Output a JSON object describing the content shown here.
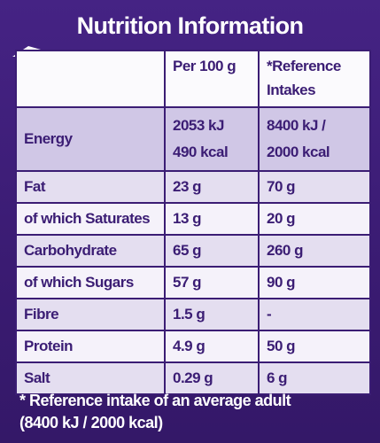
{
  "header": {
    "title": "Nutrition Information"
  },
  "table": {
    "columns": [
      "Per 100 g",
      "*Reference Intakes"
    ],
    "energy": {
      "name": "Energy",
      "per100": [
        "2053 kJ",
        "490 kcal"
      ],
      "reference": [
        "8400 kJ /",
        "2000 kcal"
      ]
    },
    "rows": [
      [
        "Fat",
        "23 g",
        "70 g"
      ],
      [
        "of which Saturates",
        "13 g",
        "20 g"
      ],
      [
        "Carbohydrate",
        "65 g",
        "260 g"
      ],
      [
        "of which Sugars",
        "57 g",
        "90 g"
      ],
      [
        "Fibre",
        "1.5 g",
        "-"
      ],
      [
        "Protein",
        "4.9 g",
        "50 g"
      ],
      [
        "Salt",
        "0.29 g",
        "6 g"
      ]
    ]
  },
  "footnote": [
    "* Reference intake of an average adult",
    "(8400 kJ / 2000 kcal)"
  ]
}
